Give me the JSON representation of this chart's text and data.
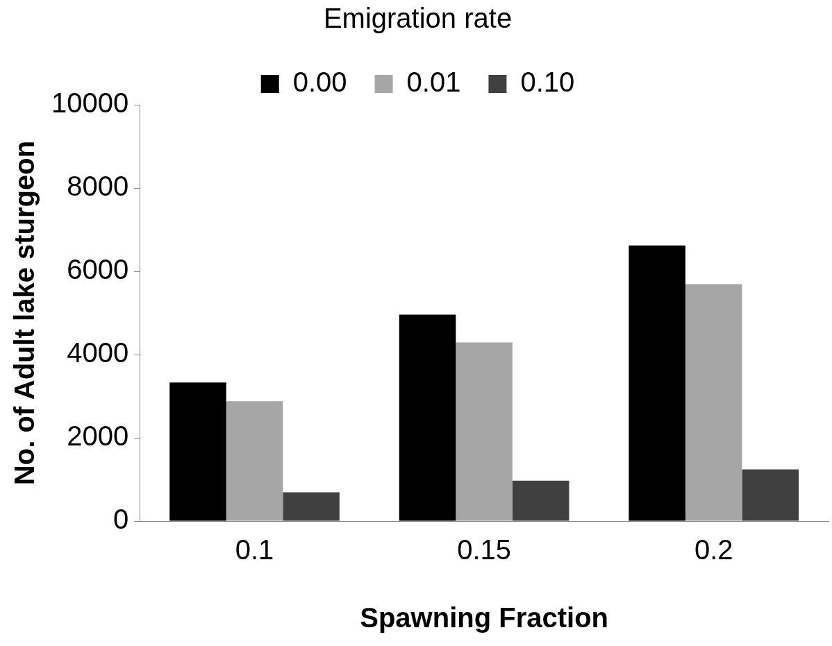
{
  "chart_data": {
    "type": "bar",
    "xlabel": "Spawning Fraction",
    "ylabel": "No. of Adult lake sturgeon",
    "legend_title": "Emigration rate",
    "categories": [
      "0.1",
      "0.15",
      "0.2"
    ],
    "series": [
      {
        "name": "0.00",
        "color": "#000000",
        "values": [
          3330,
          4960,
          6620
        ]
      },
      {
        "name": "0.01",
        "color": "#a6a6a6",
        "values": [
          2880,
          4290,
          5690
        ]
      },
      {
        "name": "0.10",
        "color": "#404040",
        "values": [
          690,
          970,
          1240
        ]
      }
    ],
    "ylim": [
      0,
      10000
    ],
    "yticks": [
      0,
      2000,
      4000,
      6000,
      8000,
      10000
    ],
    "grid": false,
    "legend": "top"
  }
}
